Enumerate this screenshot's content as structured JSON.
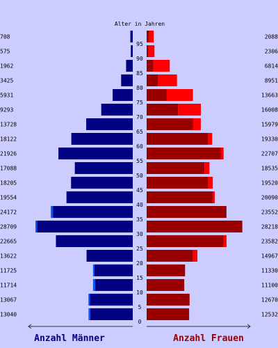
{
  "colors": {
    "background": "#ccccff",
    "male_bar": "#000080",
    "male_excess": "#0055ff",
    "female_bar": "#990000",
    "female_excess": "#ff0000",
    "male_legend_text": "#000080",
    "female_legend_text": "#990000",
    "axis": "#333333"
  },
  "chart_data": {
    "type": "bar",
    "subtype": "population-pyramid",
    "ylabel": "Alter in Jahren",
    "age_ticks": [
      "0",
      "5",
      "10",
      "15",
      "20",
      "25",
      "30",
      "35",
      "40",
      "45",
      "50",
      "55",
      "60",
      "65",
      "70",
      "75",
      "80",
      "85",
      "90",
      "95"
    ],
    "age_groups": [
      "0-4",
      "5-9",
      "10-14",
      "15-19",
      "20-24",
      "25-29",
      "30-34",
      "35-39",
      "40-44",
      "45-49",
      "50-54",
      "55-59",
      "60-64",
      "65-69",
      "70-74",
      "75-79",
      "80-84",
      "85-89",
      "90-94",
      "95-99"
    ],
    "men_labels": [
      "13040",
      "13067",
      "11714",
      "11725",
      "13622",
      "22665",
      "28709",
      "24172",
      "19554",
      "18205",
      "17088",
      "21926",
      "18122",
      "13728",
      "9293",
      "5931",
      "3425",
      "1962",
      "575",
      "708"
    ],
    "women_labels": [
      "12532",
      "12670",
      "11100",
      "11330",
      "14967",
      "23582",
      "28218",
      "23552",
      "20090",
      "19520",
      "18535",
      "22707",
      "19330",
      "15979",
      "16008",
      "13663",
      "8951",
      "6814",
      "2306",
      "2088"
    ],
    "men": [
      13040,
      13067,
      11714,
      11725,
      13622,
      22665,
      28709,
      24172,
      19554,
      18205,
      17088,
      21926,
      18122,
      13728,
      9293,
      5931,
      3425,
      1962,
      575,
      708
    ],
    "women": [
      12532,
      12670,
      11100,
      11330,
      14967,
      23582,
      28218,
      23552,
      20090,
      19520,
      18535,
      22707,
      19330,
      15979,
      16008,
      13663,
      8951,
      6814,
      2306,
      2088
    ],
    "legend": {
      "men": "Anzahl Männer",
      "women": "Anzahl Frauen"
    }
  }
}
